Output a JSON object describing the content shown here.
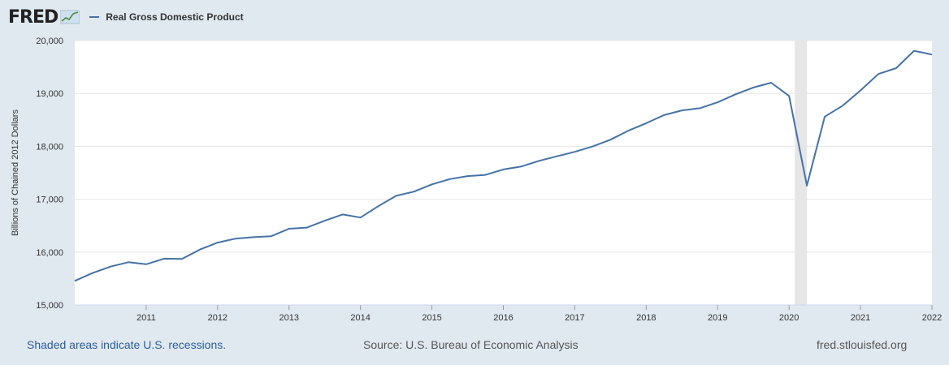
{
  "header": {
    "logo_text": "FRED",
    "legend_label": "Real Gross Domestic Product"
  },
  "footer": {
    "recession_note": "Shaded areas indicate U.S. recessions.",
    "source": "Source: U.S. Bureau of Economic Analysis",
    "site": "fred.stlouisfed.org"
  },
  "colors": {
    "line": "#4572a7",
    "recession": "#e6e6e6",
    "background": "#e1e9f0",
    "plot": "#ffffff"
  },
  "chart_data": {
    "type": "line",
    "ylabel": "Billions of Chained 2012 Dollars",
    "ylim": [
      15000,
      20000
    ],
    "yticks": [
      {
        "value": 15000,
        "label": "15,000"
      },
      {
        "value": 16000,
        "label": "16,000"
      },
      {
        "value": 17000,
        "label": "17,000"
      },
      {
        "value": 18000,
        "label": "18,000"
      },
      {
        "value": 19000,
        "label": "19,000"
      },
      {
        "value": 20000,
        "label": "20,000"
      }
    ],
    "xlim": [
      2010.0,
      2022.0
    ],
    "xticks": [
      {
        "value": 2011.0,
        "label": "2011"
      },
      {
        "value": 2012.0,
        "label": "2012"
      },
      {
        "value": 2013.0,
        "label": "2013"
      },
      {
        "value": 2014.0,
        "label": "2014"
      },
      {
        "value": 2015.0,
        "label": "2015"
      },
      {
        "value": 2016.0,
        "label": "2016"
      },
      {
        "value": 2017.0,
        "label": "2017"
      },
      {
        "value": 2018.0,
        "label": "2018"
      },
      {
        "value": 2019.0,
        "label": "2019"
      },
      {
        "value": 2020.0,
        "label": "2020"
      },
      {
        "value": 2021.0,
        "label": "2021"
      },
      {
        "value": 2022.0,
        "label": "2022"
      }
    ],
    "grid": true,
    "recessions": [
      [
        2020.08,
        2020.25
      ]
    ],
    "series": [
      {
        "name": "Real Gross Domestic Product",
        "x": [
          2010.0,
          2010.25,
          2010.5,
          2010.75,
          2011.0,
          2011.25,
          2011.5,
          2011.75,
          2012.0,
          2012.25,
          2012.5,
          2012.75,
          2013.0,
          2013.25,
          2013.5,
          2013.75,
          2014.0,
          2014.25,
          2014.5,
          2014.75,
          2015.0,
          2015.25,
          2015.5,
          2015.75,
          2016.0,
          2016.25,
          2016.5,
          2016.75,
          2017.0,
          2017.25,
          2017.5,
          2017.75,
          2018.0,
          2018.25,
          2018.5,
          2018.75,
          2019.0,
          2019.25,
          2019.5,
          2019.75,
          2020.0,
          2020.25,
          2020.5,
          2020.75,
          2021.0,
          2021.25,
          2021.5,
          2021.75,
          2022.0
        ],
        "values": [
          15455,
          15605,
          15726,
          15808,
          15770,
          15876,
          15870,
          16048,
          16180,
          16254,
          16282,
          16300,
          16442,
          16463,
          16594,
          16712,
          16654,
          16868,
          17064,
          17144,
          17280,
          17381,
          17437,
          17460,
          17563,
          17618,
          17725,
          17812,
          17896,
          17997,
          18126,
          18296,
          18437,
          18590,
          18680,
          18721,
          18833,
          18983,
          19112,
          19202,
          18952,
          17258,
          18561,
          18768,
          19056,
          19368,
          19478,
          19806,
          19735
        ]
      }
    ]
  }
}
